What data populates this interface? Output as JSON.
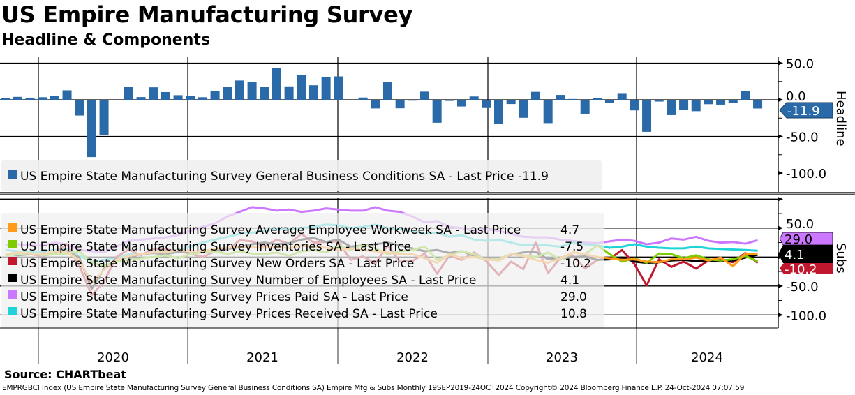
{
  "header": {
    "title": "US Empire Manufacturing Survey",
    "subtitle": "Headline & Components"
  },
  "source": "Source: CHARTbeat",
  "footer": "EMPRGBCI Index (US Empire State Manufacturing Survey General Business Conditions SA) Empire Mfg & Subs  Monthly 19SEP2019-24OCT2024 Copyright© 2024 Bloomberg Finance L.P. 24-Oct-2024 07:07:59",
  "chart_data": [
    {
      "type": "bar",
      "panel_label": "Headline",
      "x_start": "2019-09",
      "x_end": "2024-10",
      "frequency": "monthly",
      "x_tick_labels": [
        "2020",
        "2021",
        "2022",
        "2023",
        "2024"
      ],
      "y_tick_labels": [
        "50.0",
        "0.0",
        "-50.0",
        "-100.0"
      ],
      "ylim": [
        -100,
        55
      ],
      "grid": true,
      "legend_placement": "bottom-left",
      "series": [
        {
          "name": "US Empire State Manufacturing Survey General Business Conditions SA - Last Price -11.9",
          "last": "-11.9",
          "color": "#2a6aa8",
          "values": [
            2.0,
            4.0,
            2.9,
            3.5,
            4.8,
            12.9,
            -21.5,
            -78.2,
            -48.5,
            -0.2,
            17.2,
            3.7,
            17.0,
            10.5,
            6.3,
            4.9,
            3.5,
            12.1,
            17.4,
            26.3,
            24.3,
            17.4,
            43.0,
            18.3,
            34.3,
            19.8,
            30.9,
            31.9,
            -0.7,
            3.1,
            -11.8,
            24.6,
            -11.6,
            -1.2,
            11.1,
            -31.3,
            -1.5,
            -9.1,
            4.5,
            -11.2,
            -32.9,
            -5.8,
            -24.6,
            10.8,
            -31.8,
            6.6,
            1.1,
            -19.0,
            1.9,
            -4.6,
            9.1,
            -14.5,
            -43.7,
            -2.4,
            -20.9,
            -14.3,
            -15.6,
            -6.0,
            -6.6,
            -4.7,
            11.5,
            -11.9
          ]
        }
      ]
    },
    {
      "type": "line",
      "panel_label": "Subs",
      "x_start": "2019-09",
      "x_end": "2024-10",
      "frequency": "monthly",
      "y_tick_labels": [
        "50.0",
        "-50.0",
        "-100.0"
      ],
      "ylim": [
        -110,
        100
      ],
      "grid": true,
      "legend_placement": "left",
      "series": [
        {
          "name": "US Empire State Manufacturing Survey Average Employee Workweek SA - Last Price",
          "last": "4.7",
          "color": "#ff9a1a",
          "values": [
            5,
            8,
            6,
            5,
            10,
            8,
            -5,
            -45,
            -22,
            -5,
            2,
            5,
            8,
            8,
            12,
            10,
            10,
            14,
            16,
            18,
            17,
            16,
            18,
            15,
            20,
            18,
            16,
            12,
            15,
            12,
            10,
            8,
            5,
            5,
            -2,
            -10,
            5,
            -2,
            0,
            -4,
            -6,
            5,
            2,
            -5,
            -10,
            -2,
            8,
            5,
            0,
            -2,
            -5,
            -4,
            -8,
            -9,
            -4,
            -4,
            -1,
            -6,
            -1,
            -16,
            6,
            4.7
          ]
        },
        {
          "name": "US Empire State Manufacturing Survey Inventories SA - Last Price",
          "last": "-7.5",
          "color": "#7ccc00",
          "values": [
            3,
            5,
            7,
            3,
            5,
            6,
            10,
            -10,
            -15,
            -8,
            -5,
            -2,
            0,
            3,
            -2,
            5,
            8,
            10,
            5,
            10,
            6,
            5,
            8,
            2,
            10,
            12,
            8,
            20,
            12,
            22,
            15,
            5,
            10,
            12,
            18,
            -5,
            3,
            10,
            5,
            -5,
            -3,
            5,
            3,
            0,
            8,
            -5,
            8,
            5,
            20,
            5,
            -8,
            -2,
            -10,
            6,
            5,
            -2,
            3,
            -4,
            -6,
            -4,
            2,
            -7.5
          ]
        },
        {
          "name": "US Empire State Manufacturing Survey New Orders SA - Last Price",
          "last": "-10.2",
          "color": "#c0172f",
          "values": [
            3,
            6,
            5,
            2,
            6,
            22,
            -15,
            -66,
            -42,
            0,
            13,
            3,
            14,
            13,
            10,
            6,
            0,
            10,
            12,
            29,
            27,
            18,
            30,
            23,
            40,
            25,
            26,
            27,
            -5,
            1,
            -11,
            20,
            -8,
            -7,
            6,
            -29,
            3,
            -5,
            8,
            -7,
            -31,
            -8,
            -21,
            25,
            -28,
            -1,
            3,
            -20,
            -5,
            -3,
            12,
            -12,
            -49,
            -4,
            -17,
            -8,
            -20,
            -6,
            -5,
            -9,
            7,
            -10.2
          ]
        },
        {
          "name": "US Empire State Manufacturing Survey Number of Employees SA - Last Price",
          "last": "4.1",
          "color": "#000000",
          "values": [
            6,
            3,
            5,
            6,
            8,
            10,
            -1,
            -55,
            -20,
            -4,
            0,
            5,
            7,
            5,
            9,
            10,
            8,
            12,
            14,
            17,
            22,
            25,
            22,
            24,
            30,
            33,
            26,
            30,
            18,
            20,
            22,
            25,
            20,
            15,
            10,
            12,
            7,
            10,
            2,
            -3,
            -5,
            4,
            8,
            9,
            -4,
            -3,
            0,
            1,
            -5,
            -4,
            -1,
            -8,
            -10,
            -9,
            -6,
            -5,
            -7,
            -6,
            -7,
            -6,
            -1,
            4.1
          ]
        },
        {
          "name": "US Empire State Manufacturing Survey Prices Paid SA - Last Price",
          "last": "29.0",
          "color": "#cc77ff",
          "values": [
            20,
            22,
            20,
            20,
            25,
            22,
            12,
            10,
            8,
            18,
            28,
            30,
            32,
            34,
            38,
            45,
            52,
            58,
            70,
            78,
            86,
            84,
            80,
            82,
            78,
            80,
            84,
            82,
            80,
            80,
            86,
            80,
            78,
            70,
            60,
            62,
            52,
            50,
            45,
            48,
            45,
            40,
            35,
            34,
            34,
            30,
            28,
            25,
            24,
            27,
            30,
            28,
            22,
            25,
            32,
            30,
            35,
            28,
            25,
            26,
            23,
            29.0
          ]
        },
        {
          "name": "US Empire State Manufacturing Survey Prices Received SA - Last Price",
          "last": "10.8",
          "color": "#1fd3d8",
          "values": [
            12,
            10,
            8,
            10,
            12,
            14,
            2,
            -8,
            -5,
            -2,
            5,
            5,
            8,
            10,
            12,
            18,
            25,
            30,
            35,
            40,
            42,
            45,
            50,
            48,
            50,
            52,
            56,
            55,
            50,
            52,
            56,
            50,
            48,
            45,
            40,
            42,
            35,
            38,
            30,
            28,
            30,
            25,
            20,
            22,
            20,
            18,
            25,
            22,
            20,
            16,
            18,
            22,
            18,
            16,
            15,
            15,
            18,
            15,
            14,
            13,
            12,
            10.8
          ]
        }
      ]
    }
  ]
}
